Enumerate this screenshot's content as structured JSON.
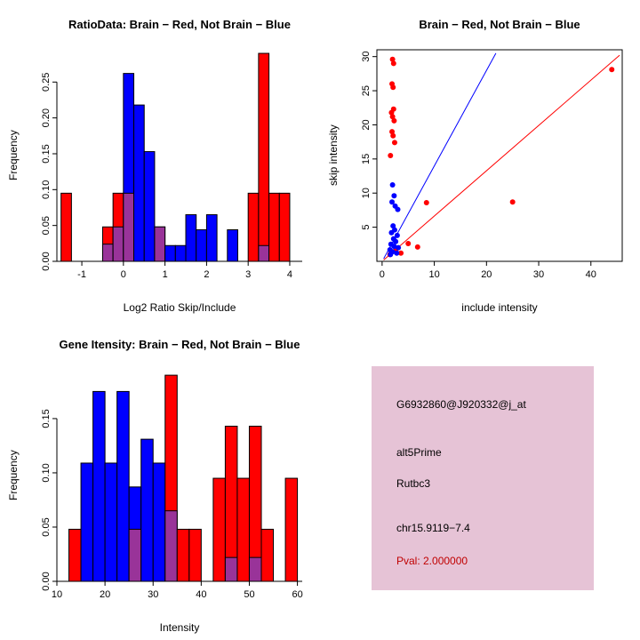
{
  "figure": {
    "background": "#FFFFFF"
  },
  "colors": {
    "red": "#FF0000",
    "blue": "#0000FF",
    "purple": "#993399",
    "pval_text": "#C00000",
    "info_bg": "#E6C3D6",
    "axis": "#000000"
  },
  "info_box": {
    "probe_id": "G6932860@J920332@j_at",
    "splice_type": "alt5Prime",
    "gene": "Rutbc3",
    "locus": "chr15.9119−7.4",
    "pval": "Pval: 2.000000"
  },
  "chart_data": [
    {
      "id": "ratio-histogram",
      "type": "bar",
      "title": "RatioData: Brain − Red, Not Brain − Blue",
      "xlabel": "Log2 Ratio Skip/Include",
      "ylabel": "Frequency",
      "legend": "none",
      "grid": false,
      "xlim": [
        -1.6,
        4.3
      ],
      "ylim": [
        0,
        0.295
      ],
      "xticks": [
        -1,
        0,
        1,
        2,
        3,
        4
      ],
      "yticks": [
        0,
        0.05,
        0.1,
        0.15,
        0.2,
        0.25
      ],
      "ytick_labels": [
        "0.00",
        "0.05",
        "0.10",
        "0.15",
        "0.20",
        "0.25"
      ],
      "bin_width": 0.25,
      "bins": [
        {
          "x": -1.5,
          "red": 0.095,
          "blue": 0
        },
        {
          "x": -0.5,
          "red": 0.048,
          "blue": 0.024
        },
        {
          "x": -0.25,
          "red": 0.095,
          "blue": 0.048
        },
        {
          "x": 0,
          "red": 0.095,
          "blue": 0.262
        },
        {
          "x": 0.25,
          "red": 0,
          "blue": 0.218
        },
        {
          "x": 0.5,
          "red": 0,
          "blue": 0.153
        },
        {
          "x": 0.75,
          "red": 0.048,
          "blue": 0.048
        },
        {
          "x": 1,
          "red": 0,
          "blue": 0.022
        },
        {
          "x": 1.25,
          "red": 0,
          "blue": 0.022
        },
        {
          "x": 1.5,
          "red": 0,
          "blue": 0.065
        },
        {
          "x": 1.75,
          "red": 0,
          "blue": 0.044
        },
        {
          "x": 2,
          "red": 0,
          "blue": 0.065
        },
        {
          "x": 2.5,
          "red": 0,
          "blue": 0.044
        },
        {
          "x": 3,
          "red": 0.095,
          "blue": 0
        },
        {
          "x": 3.25,
          "red": 0.29,
          "blue": 0.022
        },
        {
          "x": 3.5,
          "red": 0.095,
          "blue": 0
        },
        {
          "x": 3.75,
          "red": 0.095,
          "blue": 0
        }
      ]
    },
    {
      "id": "intensity-scatter",
      "type": "scatter",
      "title": "Brain − Red, Not Brain − Blue",
      "xlabel": "include intensity",
      "ylabel": "skip intensity",
      "legend": "none",
      "grid": false,
      "xlim": [
        -1,
        46
      ],
      "ylim": [
        0,
        31
      ],
      "xticks": [
        0,
        10,
        20,
        30,
        40
      ],
      "yticks": [
        5,
        10,
        15,
        20,
        25,
        30
      ],
      "series": [
        {
          "name": "Brain",
          "color": "#FF0000",
          "points": [
            [
              2,
              29.6
            ],
            [
              2.2,
              29
            ],
            [
              1.9,
              26
            ],
            [
              2.1,
              25.5
            ],
            [
              2.2,
              22.3
            ],
            [
              1.8,
              21.8
            ],
            [
              2,
              21.2
            ],
            [
              2.3,
              20.6
            ],
            [
              1.9,
              19
            ],
            [
              2.1,
              18.4
            ],
            [
              2.4,
              17.4
            ],
            [
              1.6,
              15.5
            ],
            [
              8.5,
              8.6
            ],
            [
              25,
              8.7
            ],
            [
              44,
              28.1
            ],
            [
              5,
              2.6
            ],
            [
              6.8,
              2.1
            ],
            [
              2.6,
              1.6
            ],
            [
              3.6,
              1.2
            ],
            [
              1.5,
              1
            ]
          ]
        },
        {
          "name": "Not Brain",
          "color": "#0000FF",
          "points": [
            [
              2,
              11.2
            ],
            [
              2.3,
              9.6
            ],
            [
              1.9,
              8.7
            ],
            [
              2.5,
              8.1
            ],
            [
              3,
              7.6
            ],
            [
              2.1,
              5.2
            ],
            [
              2.4,
              4.6
            ],
            [
              1.8,
              4.2
            ],
            [
              2.9,
              3.8
            ],
            [
              2.2,
              3.3
            ],
            [
              2.6,
              2.9
            ],
            [
              1.7,
              2.5
            ],
            [
              2.3,
              2.2
            ],
            [
              3.1,
              2
            ],
            [
              1.5,
              1.7
            ],
            [
              2,
              1.4
            ],
            [
              2.8,
              1.2
            ],
            [
              1.6,
              1
            ]
          ]
        }
      ],
      "lines": [
        {
          "color": "#0000FF",
          "x1": 0.3,
          "y1": 0.4,
          "x2": 21.8,
          "y2": 30.5
        },
        {
          "color": "#FF0000",
          "x1": 0.3,
          "y1": 0.2,
          "x2": 45.5,
          "y2": 30.2
        }
      ]
    },
    {
      "id": "gene-intensity-histogram",
      "type": "bar",
      "title": "Gene Itensity: Brain − Red, Not Brain − Blue",
      "xlabel": "Intensity",
      "ylabel": "Frequency",
      "legend": "none",
      "grid": false,
      "xlim": [
        10,
        61
      ],
      "ylim": [
        0,
        0.195
      ],
      "xticks": [
        10,
        20,
        30,
        40,
        50,
        60
      ],
      "yticks": [
        0,
        0.05,
        0.1,
        0.15
      ],
      "ytick_labels": [
        "0.00",
        "0.05",
        "0.10",
        "0.15"
      ],
      "bin_width": 2.5,
      "bins": [
        {
          "x": 12.5,
          "red": 0.048,
          "blue": 0
        },
        {
          "x": 15,
          "red": 0,
          "blue": 0.109
        },
        {
          "x": 17.5,
          "red": 0,
          "blue": 0.175
        },
        {
          "x": 20,
          "red": 0,
          "blue": 0.109
        },
        {
          "x": 22.5,
          "red": 0,
          "blue": 0.175
        },
        {
          "x": 25,
          "red": 0.048,
          "blue": 0.087
        },
        {
          "x": 27.5,
          "red": 0,
          "blue": 0.131
        },
        {
          "x": 30,
          "red": 0,
          "blue": 0.109
        },
        {
          "x": 32.5,
          "red": 0.19,
          "blue": 0.065
        },
        {
          "x": 35,
          "red": 0.048,
          "blue": 0
        },
        {
          "x": 37.5,
          "red": 0.048,
          "blue": 0
        },
        {
          "x": 42.5,
          "red": 0.095,
          "blue": 0
        },
        {
          "x": 45,
          "red": 0.143,
          "blue": 0.022
        },
        {
          "x": 47.5,
          "red": 0.095,
          "blue": 0
        },
        {
          "x": 50,
          "red": 0.143,
          "blue": 0.022
        },
        {
          "x": 52.5,
          "red": 0.048,
          "blue": 0
        },
        {
          "x": 57.5,
          "red": 0.095,
          "blue": 0
        }
      ]
    }
  ]
}
